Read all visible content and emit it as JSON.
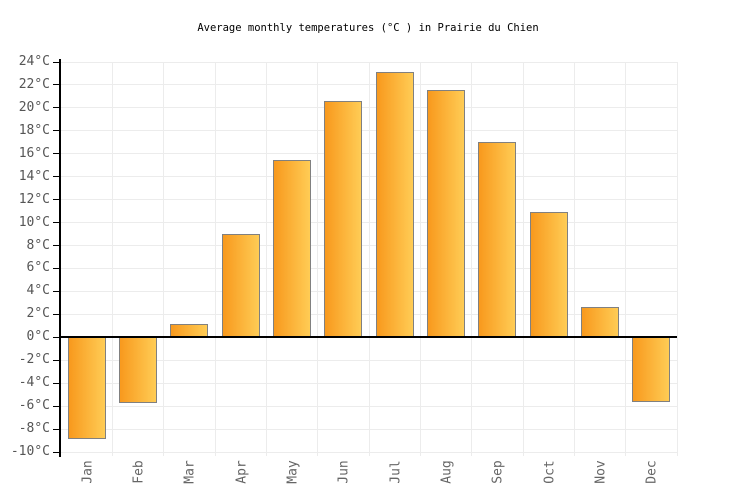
{
  "chart_data": {
    "type": "bar",
    "title": "Average monthly temperatures (°C ) in Prairie du Chien",
    "categories": [
      "Jan",
      "Feb",
      "Mar",
      "Apr",
      "May",
      "Jun",
      "Jul",
      "Aug",
      "Sep",
      "Oct",
      "Nov",
      "Dec"
    ],
    "values": [
      -8.9,
      -5.7,
      1.2,
      9.0,
      15.5,
      20.6,
      23.1,
      21.6,
      17.0,
      10.9,
      2.6,
      -5.6
    ],
    "unit": "°C",
    "xlabel": "",
    "ylabel": "",
    "ylim": [
      -10,
      24
    ],
    "ytick_step": 2,
    "ytick_values": [
      24,
      22,
      20,
      18,
      16,
      14,
      12,
      10,
      8,
      6,
      4,
      2,
      0,
      -2,
      -4,
      -6,
      -8,
      -10
    ],
    "ytick_labels": [
      "24°C",
      "22°C",
      "20°C",
      "18°C",
      "16°C",
      "14°C",
      "12°C",
      "10°C",
      "8°C",
      "6°C",
      "4°C",
      "2°C",
      "0°C",
      "-2°C",
      "-4°C",
      "-6°C",
      "-8°C",
      "-10°C"
    ],
    "grid": true,
    "legend": "none",
    "colors": {
      "bar_gradient_left": "#F8991D",
      "bar_gradient_right": "#FFCC55",
      "bar_border": "#808080",
      "grid_line": "#ECECEC",
      "axis_line": "#000000",
      "zero_line": "#000000",
      "y_tick_label": "#555555",
      "x_tick_label": "#666666",
      "title_text": "#000000",
      "background": "#FFFFFF"
    }
  }
}
